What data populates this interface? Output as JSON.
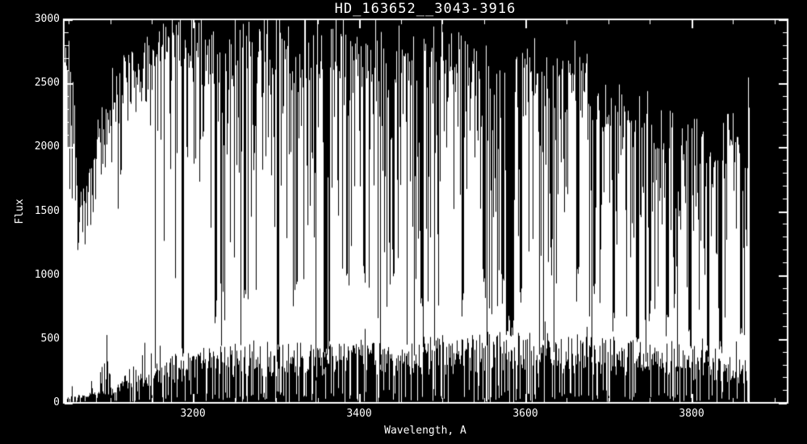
{
  "window": {
    "background_color": "#000000",
    "foreground_color": "#ffffff"
  },
  "chart_data": {
    "type": "line",
    "title": "HD_163652__3043-3916",
    "xlabel": "Wavelength, A",
    "ylabel": "Flux",
    "x_range": [
      3043,
      3916
    ],
    "y_range": [
      0,
      3000
    ],
    "grid": false,
    "legend": false,
    "x_axis": {
      "major_ticks": [
        3200,
        3400,
        3600,
        3800
      ],
      "labels": [
        "3200",
        "3400",
        "3600",
        "3800"
      ],
      "minor_step": 50,
      "minor_first": 3050,
      "minor_last": 3900
    },
    "y_axis": {
      "major_ticks": [
        0,
        500,
        1000,
        1500,
        2000,
        2500,
        3000
      ],
      "labels": [
        "0",
        "500",
        "1000",
        "1500",
        "2000",
        "2500",
        "3000"
      ],
      "minor_step": 100
    },
    "series": [
      {
        "name": "HD 163652 spectrum order 3043-3916 A",
        "style": "dense white vertical-line forest on black (noisy stellar spectrum, flux clipped at 3000)",
        "data_wavelength_range": [
          3044,
          3869
        ],
        "clip_max_flux": 3000,
        "envelope_top": [
          [
            3044,
            2500
          ],
          [
            3050,
            2850
          ],
          [
            3056,
            2400
          ],
          [
            3060,
            1650
          ],
          [
            3070,
            1750
          ],
          [
            3082,
            2050
          ],
          [
            3096,
            2350
          ],
          [
            3112,
            2600
          ],
          [
            3130,
            2750
          ],
          [
            3152,
            2950
          ],
          [
            3175,
            3000
          ],
          [
            3360,
            3000
          ],
          [
            3395,
            2900
          ],
          [
            3430,
            2800
          ],
          [
            3470,
            2870
          ],
          [
            3500,
            2900
          ],
          [
            3530,
            2870
          ],
          [
            3555,
            2750
          ],
          [
            3578,
            2550
          ],
          [
            3592,
            2650
          ],
          [
            3612,
            2800
          ],
          [
            3645,
            2800
          ],
          [
            3668,
            2650
          ],
          [
            3692,
            2420
          ],
          [
            3715,
            2480
          ],
          [
            3742,
            2380
          ],
          [
            3768,
            2320
          ],
          [
            3792,
            2270
          ],
          [
            3812,
            2170
          ],
          [
            3830,
            2080
          ],
          [
            3843,
            2280
          ],
          [
            3852,
            2150
          ],
          [
            3860,
            2020
          ],
          [
            3866,
            1950
          ],
          [
            3869,
            1800
          ]
        ],
        "envelope_bottom": [
          [
            3044,
            40
          ],
          [
            3060,
            50
          ],
          [
            3080,
            60
          ],
          [
            3100,
            90
          ],
          [
            3125,
            140
          ],
          [
            3150,
            220
          ],
          [
            3180,
            290
          ],
          [
            3220,
            330
          ],
          [
            3280,
            360
          ],
          [
            3340,
            360
          ],
          [
            3400,
            370
          ],
          [
            3460,
            380
          ],
          [
            3520,
            400
          ],
          [
            3560,
            430
          ],
          [
            3600,
            420
          ],
          [
            3650,
            400
          ],
          [
            3700,
            390
          ],
          [
            3750,
            360
          ],
          [
            3800,
            320
          ],
          [
            3830,
            300
          ],
          [
            3850,
            280
          ],
          [
            3869,
            240
          ]
        ],
        "strong_absorption_lines": [
          [
            3187,
            420,
            3
          ],
          [
            3227,
            700,
            3
          ],
          [
            3262,
            780,
            3
          ],
          [
            3302,
            300,
            3
          ],
          [
            3324,
            900,
            2
          ],
          [
            3359,
            280,
            4
          ],
          [
            3406,
            1000,
            3
          ],
          [
            3441,
            1050,
            3
          ],
          [
            3475,
            850,
            3
          ],
          [
            3524,
            750,
            3
          ],
          [
            3550,
            950,
            3
          ],
          [
            3572,
            900,
            4
          ],
          [
            3581,
            600,
            10
          ],
          [
            3594,
            850,
            3
          ],
          [
            3631,
            1150,
            3
          ],
          [
            3663,
            1000,
            3
          ],
          [
            3683,
            950,
            3
          ],
          [
            3706,
            650,
            3
          ],
          [
            3735,
            480,
            4
          ],
          [
            3750,
            700,
            3
          ],
          [
            3771,
            600,
            4
          ],
          [
            3798,
            500,
            4
          ],
          [
            3820,
            320,
            3
          ],
          [
            3835,
            420,
            4
          ],
          [
            3860,
            620,
            3
          ]
        ]
      }
    ]
  }
}
